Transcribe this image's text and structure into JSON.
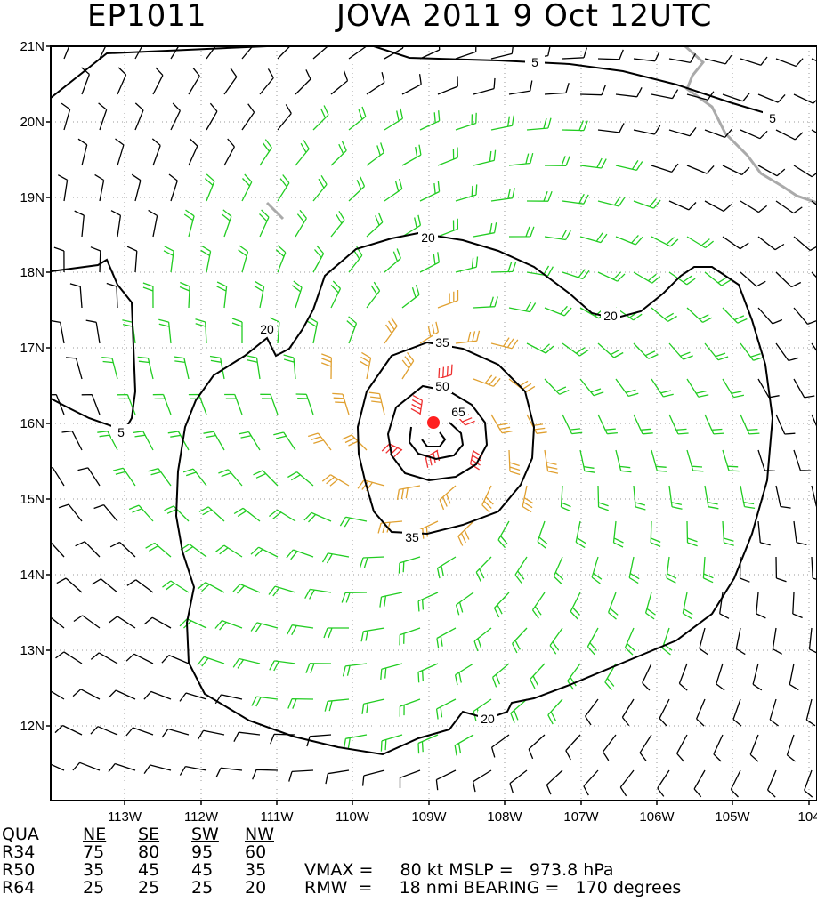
{
  "title": {
    "storm_id": "EP1011",
    "storm_info": "JOVA 2011   9 Oct 12UTC"
  },
  "map": {
    "lat_labels": [
      "21N",
      "20N",
      "19N",
      "18N",
      "17N",
      "16N",
      "15N",
      "14N",
      "13N",
      "12N"
    ],
    "lon_labels": [
      "113W",
      "112W",
      "111W",
      "110W",
      "109W",
      "108W",
      "107W",
      "106W",
      "105W",
      "104"
    ],
    "contour_labels": [
      "5",
      "5",
      "5",
      "20",
      "20",
      "20",
      "20",
      "35",
      "35",
      "50",
      "65"
    ],
    "colors": {
      "weak_barbs": "#000000",
      "ts_barbs": "#22cc22",
      "strong_barbs": "#e0a030",
      "hurricane_barbs": "#ee3030",
      "center": "#ff2020",
      "coast": "#aaaaaa"
    }
  },
  "wind_radii": {
    "header": [
      "QUA",
      "NE",
      "SE",
      "SW",
      "NW"
    ],
    "rows": [
      {
        "name": "R34",
        "values": [
          "75",
          "80",
          "95",
          "60"
        ]
      },
      {
        "name": "R50",
        "values": [
          "35",
          "45",
          "45",
          "35"
        ]
      },
      {
        "name": "R64",
        "values": [
          "25",
          "25",
          "25",
          "20"
        ]
      }
    ],
    "vmax_text": "VMAX =     80 kt MSLP =   973.8 hPa",
    "rmw_text": "RMW  =     18 nmi BEARING =   170 degrees"
  }
}
